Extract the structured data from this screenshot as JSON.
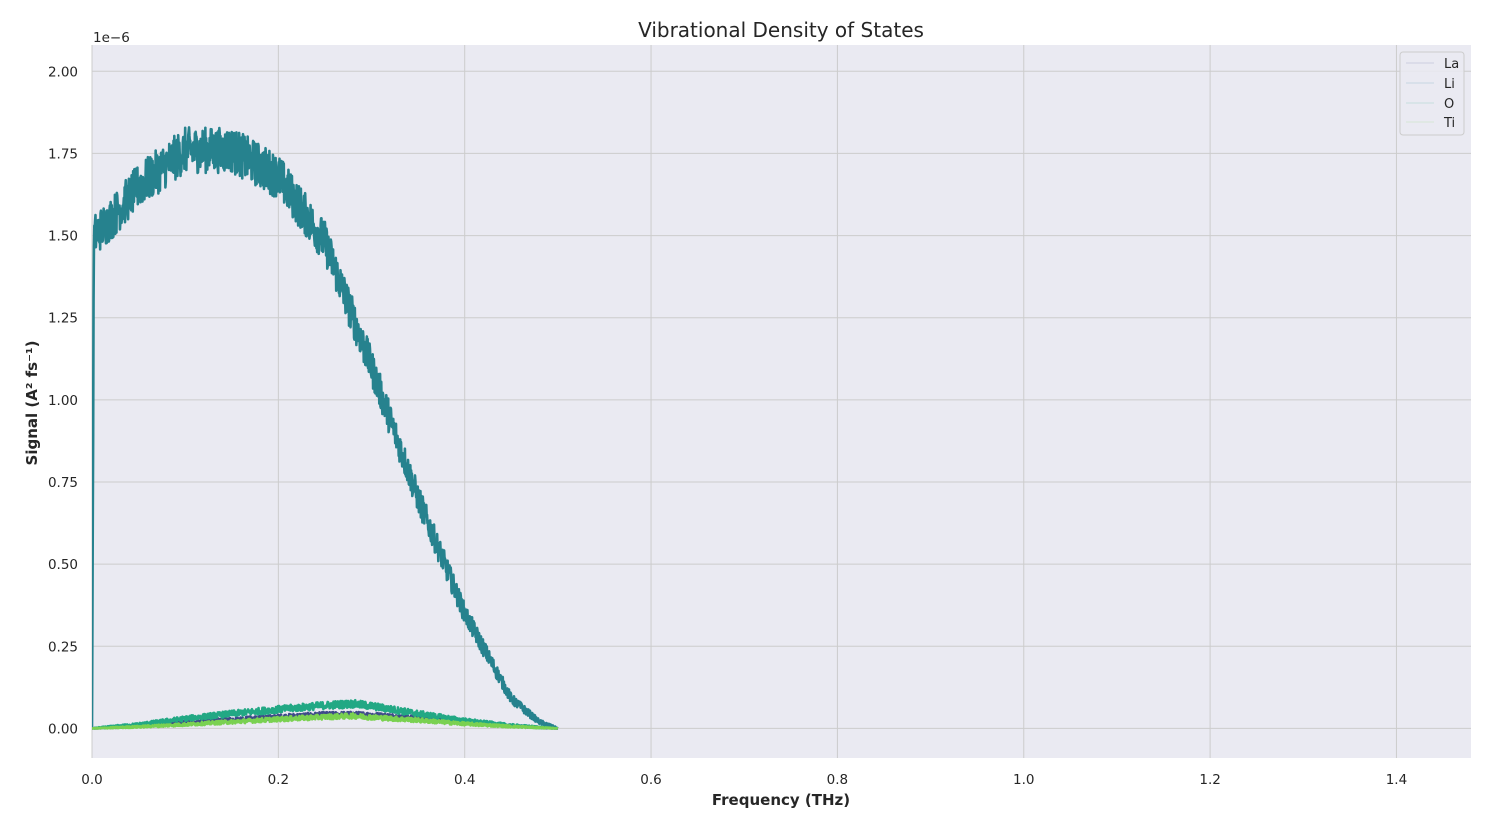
{
  "chart_data": {
    "type": "line",
    "title": "Vibrational Density of States",
    "xlabel": "Frequency (THz)",
    "ylabel": "Signal (A² fs⁻¹)",
    "y_offset_label": "1e−6",
    "xlim": [
      0.0,
      1.48
    ],
    "ylim": [
      -0.09,
      2.08
    ],
    "y_multiplier": 1e-06,
    "xticks": [
      0.0,
      0.2,
      0.4,
      0.6,
      0.8,
      1.0,
      1.2,
      1.4
    ],
    "xtick_labels": [
      "0.0",
      "0.2",
      "0.4",
      "0.6",
      "0.8",
      "1.0",
      "1.2",
      "1.4"
    ],
    "yticks": [
      0.0,
      0.25,
      0.5,
      0.75,
      1.0,
      1.25,
      1.5,
      1.75,
      2.0
    ],
    "ytick_labels": [
      "0.00",
      "0.25",
      "0.50",
      "0.75",
      "1.00",
      "1.25",
      "1.50",
      "1.75",
      "2.00"
    ],
    "grid": true,
    "legend_position": "top-right",
    "background": "#eaeaf2",
    "grid_color": "#cccccc",
    "series": [
      {
        "name": "La",
        "color": "#3e4a89",
        "noise": 0.008,
        "x": [
          0.0,
          0.05,
          0.1,
          0.15,
          0.2,
          0.25,
          0.28,
          0.3,
          0.35,
          0.4,
          0.45,
          0.5
        ],
        "y": [
          0.0,
          0.008,
          0.018,
          0.027,
          0.035,
          0.042,
          0.043,
          0.041,
          0.032,
          0.019,
          0.008,
          0.0
        ]
      },
      {
        "name": "Li",
        "color": "#26828e",
        "noise": 0.07,
        "x": [
          0.0,
          0.002,
          0.02,
          0.05,
          0.1,
          0.15,
          0.2,
          0.25,
          0.3,
          0.35,
          0.4,
          0.45,
          0.48,
          0.5
        ],
        "y": [
          0.0,
          1.5,
          1.55,
          1.65,
          1.76,
          1.76,
          1.68,
          1.48,
          1.1,
          0.7,
          0.35,
          0.09,
          0.02,
          0.0
        ]
      },
      {
        "name": "O",
        "color": "#22a884",
        "noise": 0.012,
        "x": [
          0.0,
          0.05,
          0.1,
          0.15,
          0.2,
          0.25,
          0.28,
          0.3,
          0.35,
          0.4,
          0.45,
          0.5
        ],
        "y": [
          0.0,
          0.012,
          0.03,
          0.045,
          0.058,
          0.07,
          0.075,
          0.068,
          0.045,
          0.024,
          0.009,
          0.0
        ]
      },
      {
        "name": "Ti",
        "color": "#7ad151",
        "noise": 0.008,
        "x": [
          0.0,
          0.05,
          0.1,
          0.15,
          0.2,
          0.25,
          0.28,
          0.3,
          0.35,
          0.4,
          0.45,
          0.5
        ],
        "y": [
          0.0,
          0.005,
          0.012,
          0.02,
          0.028,
          0.035,
          0.038,
          0.034,
          0.025,
          0.014,
          0.006,
          0.0
        ]
      }
    ]
  }
}
